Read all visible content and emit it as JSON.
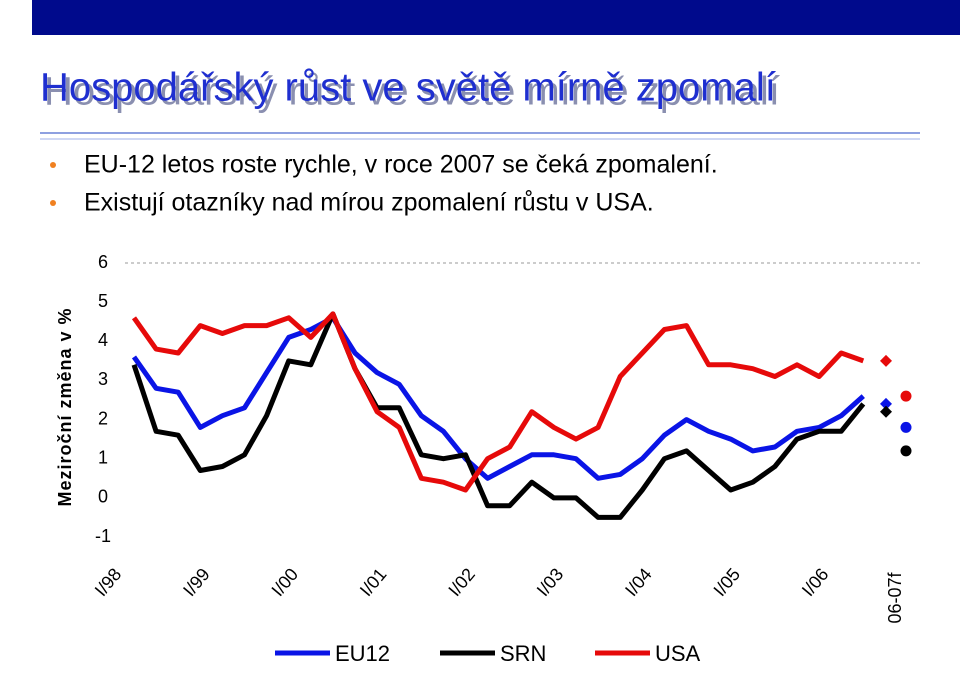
{
  "chart_data": {
    "type": "line",
    "title": "Hospodářský růst ve světě mírně zpomalí",
    "bullets": [
      "EU-12 letos roste rychle, v roce 2007 se čeká zpomalení.",
      "Existují otazníky nad mírou zpomalení růstu v USA."
    ],
    "y_label": "Meziroční změna v %",
    "categories": [
      "I/98",
      null,
      null,
      null,
      "I/99",
      null,
      null,
      null,
      "I/00",
      null,
      null,
      null,
      "I/01",
      null,
      null,
      null,
      "I/02",
      null,
      null,
      null,
      "I/03",
      null,
      null,
      null,
      "I/04",
      null,
      null,
      null,
      "I/05",
      null,
      null,
      null,
      "I/06",
      null
    ],
    "forecast_label": "06-07f",
    "ylim": [
      -1,
      6
    ],
    "yticks": [
      -1,
      0,
      1,
      2,
      3,
      4,
      5,
      6
    ],
    "series": [
      {
        "name": "EU12",
        "color": "#0a14e6",
        "values": [
          3.6,
          2.8,
          2.7,
          1.8,
          2.1,
          2.3,
          3.2,
          4.1,
          4.3,
          4.6,
          3.7,
          3.2,
          2.9,
          2.1,
          1.7,
          1.0,
          0.5,
          0.8,
          1.1,
          1.1,
          1.0,
          0.5,
          0.6,
          1.0,
          1.6,
          2.0,
          1.7,
          1.5,
          1.2,
          1.3,
          1.7,
          1.8,
          2.1,
          2.6
        ],
        "forecast": [
          2.4,
          1.8
        ]
      },
      {
        "name": "SRN",
        "color": "#000000",
        "values": [
          3.4,
          1.7,
          1.6,
          0.7,
          0.8,
          1.1,
          2.1,
          3.5,
          3.4,
          4.7,
          3.3,
          2.3,
          2.3,
          1.1,
          1.0,
          1.1,
          -0.2,
          -0.2,
          0.4,
          0.0,
          0.0,
          -0.5,
          -0.5,
          0.2,
          1.0,
          1.2,
          0.7,
          0.2,
          0.4,
          0.8,
          1.5,
          1.7,
          1.7,
          2.4
        ],
        "forecast": [
          2.2,
          1.2
        ]
      },
      {
        "name": "USA",
        "color": "#e60a0a",
        "values": [
          4.6,
          3.8,
          3.7,
          4.4,
          4.2,
          4.4,
          4.4,
          4.6,
          4.1,
          4.7,
          3.3,
          2.2,
          1.8,
          0.5,
          0.4,
          0.2,
          1.0,
          1.3,
          2.2,
          1.8,
          1.5,
          1.8,
          3.1,
          3.7,
          4.3,
          4.4,
          3.4,
          3.4,
          3.3,
          3.1,
          3.4,
          3.1,
          3.7,
          3.5
        ],
        "forecast": [
          3.5,
          2.6
        ]
      }
    ]
  }
}
